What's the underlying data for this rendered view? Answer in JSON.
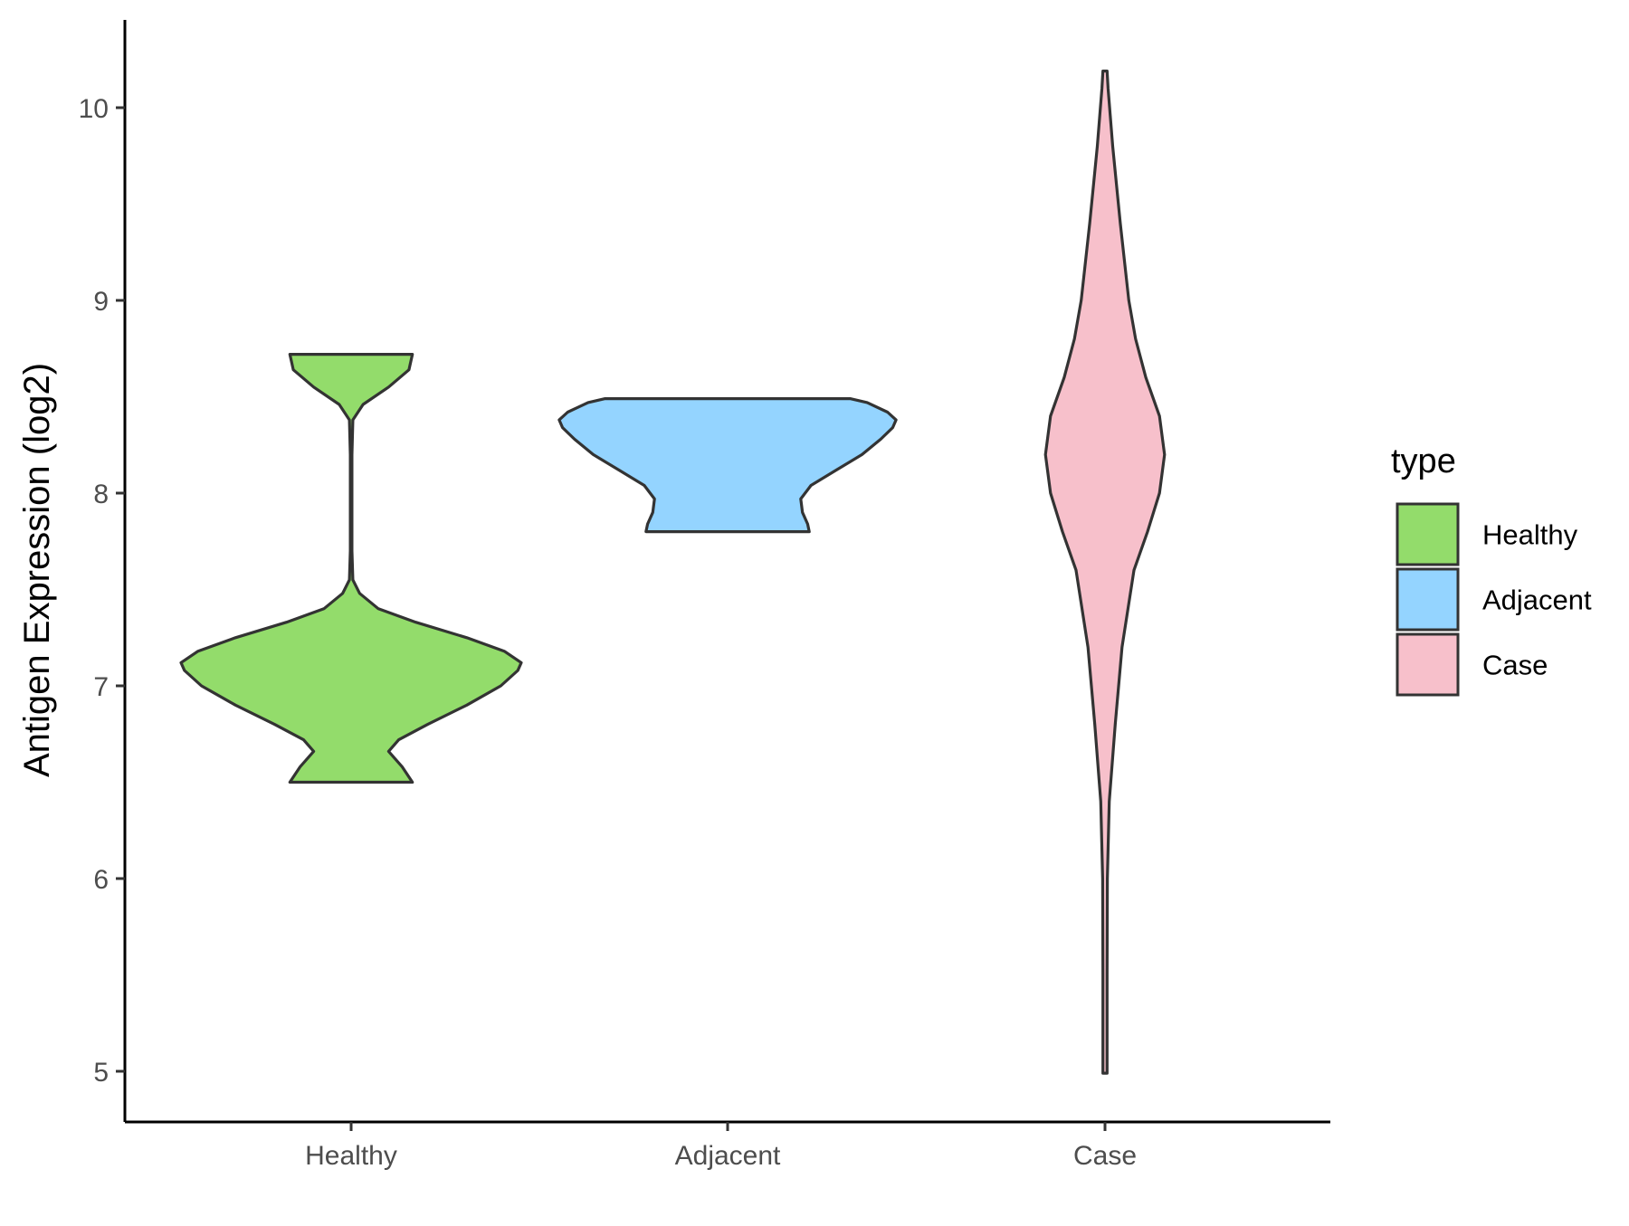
{
  "chart_data": {
    "type": "violin",
    "xlabel": "",
    "ylabel": "Antigen Expression (log2)",
    "categories": [
      "Healthy",
      "Adjacent",
      "Case"
    ],
    "ylim": [
      4.7,
      10.5
    ],
    "yticks": [
      5,
      6,
      7,
      8,
      9,
      10
    ],
    "grid": false,
    "legend": {
      "title": "type",
      "position": "right",
      "entries": [
        {
          "label": "Healthy",
          "color": "#93dc6b"
        },
        {
          "label": "Adjacent",
          "color": "#94d4ff"
        },
        {
          "label": "Case",
          "color": "#f7c0cb"
        }
      ]
    },
    "series": [
      {
        "category": "Healthy",
        "color": "#93dc6b",
        "min": 6.5,
        "max": 8.72,
        "density_profile": [
          [
            6.5,
            0.36
          ],
          [
            6.58,
            0.3
          ],
          [
            6.66,
            0.22
          ],
          [
            6.72,
            0.28
          ],
          [
            6.8,
            0.45
          ],
          [
            6.9,
            0.68
          ],
          [
            7.0,
            0.88
          ],
          [
            7.08,
            0.98
          ],
          [
            7.12,
            1.0
          ],
          [
            7.18,
            0.9
          ],
          [
            7.25,
            0.68
          ],
          [
            7.33,
            0.38
          ],
          [
            7.4,
            0.16
          ],
          [
            7.48,
            0.05
          ],
          [
            7.55,
            0.01
          ],
          [
            7.7,
            0.005
          ],
          [
            8.2,
            0.005
          ],
          [
            8.38,
            0.01
          ],
          [
            8.46,
            0.07
          ],
          [
            8.55,
            0.22
          ],
          [
            8.64,
            0.34
          ],
          [
            8.72,
            0.36
          ]
        ]
      },
      {
        "category": "Adjacent",
        "color": "#94d4ff",
        "min": 7.8,
        "max": 8.49,
        "density_profile": [
          [
            7.8,
            0.48
          ],
          [
            7.84,
            0.47
          ],
          [
            7.9,
            0.44
          ],
          [
            7.97,
            0.43
          ],
          [
            8.04,
            0.49
          ],
          [
            8.12,
            0.64
          ],
          [
            8.2,
            0.79
          ],
          [
            8.28,
            0.9
          ],
          [
            8.34,
            0.97
          ],
          [
            8.38,
            0.99
          ],
          [
            8.42,
            0.94
          ],
          [
            8.47,
            0.82
          ],
          [
            8.49,
            0.72
          ]
        ]
      },
      {
        "category": "Case",
        "color": "#f7c0cb",
        "min": 4.99,
        "max": 10.19,
        "density_profile": [
          [
            4.99,
            0.012
          ],
          [
            5.5,
            0.012
          ],
          [
            6.0,
            0.014
          ],
          [
            6.4,
            0.025
          ],
          [
            6.8,
            0.06
          ],
          [
            7.2,
            0.1
          ],
          [
            7.6,
            0.17
          ],
          [
            7.8,
            0.25
          ],
          [
            8.0,
            0.32
          ],
          [
            8.2,
            0.35
          ],
          [
            8.4,
            0.32
          ],
          [
            8.6,
            0.24
          ],
          [
            8.8,
            0.18
          ],
          [
            9.0,
            0.14
          ],
          [
            9.4,
            0.09
          ],
          [
            9.8,
            0.045
          ],
          [
            10.1,
            0.018
          ],
          [
            10.19,
            0.012
          ]
        ]
      }
    ]
  }
}
